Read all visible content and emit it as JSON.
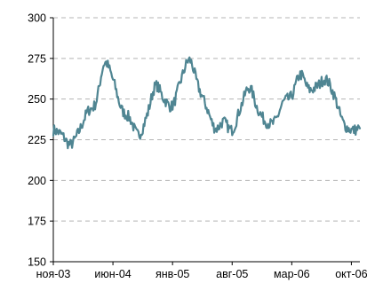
{
  "chart_data": {
    "type": "line",
    "title": "",
    "xlabel": "",
    "ylabel": "",
    "ylim": [
      150,
      300
    ],
    "yticks": [
      150,
      175,
      200,
      225,
      250,
      275,
      300
    ],
    "grid": "horizontal dashed",
    "legend": "none",
    "line_color": "#4f8592",
    "x_tick_labels": [
      {
        "label": "ноя-03",
        "x": "2003-11"
      },
      {
        "label": "июн-04",
        "x": "2004-06"
      },
      {
        "label": "янв-05",
        "x": "2005-01"
      },
      {
        "label": "авг-05",
        "x": "2005-08"
      },
      {
        "label": "мар-06",
        "x": "2006-03"
      },
      {
        "label": "окт-06",
        "x": "2006-10"
      }
    ],
    "x_range": [
      "2003-11",
      "2006-11"
    ],
    "series": [
      {
        "x": [
          "2003-11",
          "2003-12",
          "2004-01",
          "2004-02",
          "2004-03",
          "2004-04",
          "2004-05",
          "2004-06",
          "2004-07",
          "2004-08",
          "2004-09",
          "2004-10",
          "2004-11",
          "2004-12",
          "2005-01",
          "2005-02",
          "2005-03",
          "2005-04",
          "2005-05",
          "2005-06",
          "2005-07",
          "2005-08",
          "2005-09",
          "2005-10",
          "2005-11",
          "2005-12",
          "2006-01",
          "2006-02",
          "2006-03",
          "2006-04",
          "2006-05",
          "2006-06",
          "2006-07",
          "2006-08",
          "2006-09",
          "2006-10",
          "2006-11"
        ],
        "values": [
          231,
          228,
          222,
          230,
          242,
          248,
          272,
          262,
          244,
          238,
          228,
          240,
          258,
          250,
          246,
          262,
          274,
          258,
          245,
          232,
          236,
          231,
          245,
          257,
          244,
          236,
          236,
          248,
          252,
          265,
          256,
          258,
          262,
          252,
          236,
          231,
          232
        ]
      }
    ]
  }
}
